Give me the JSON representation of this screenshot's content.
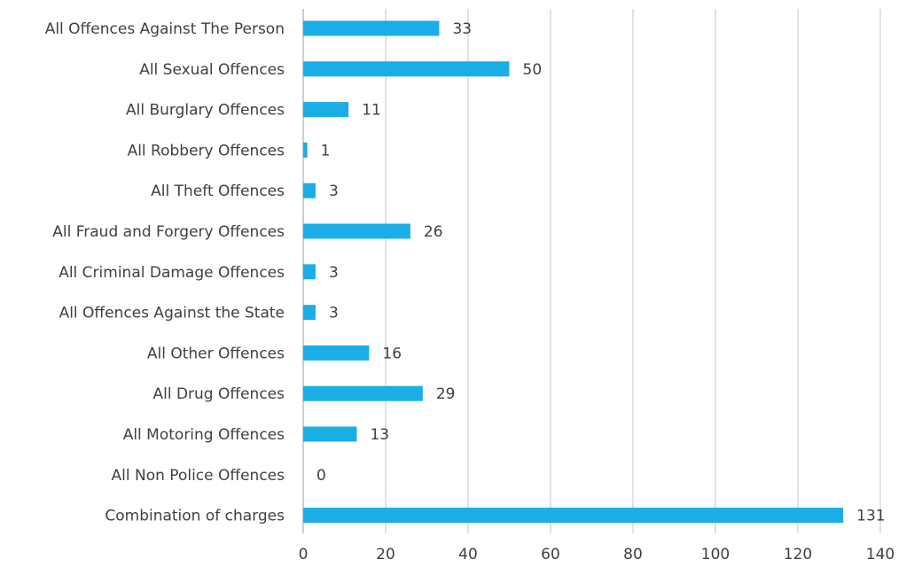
{
  "chart_data": {
    "type": "bar",
    "orientation": "horizontal",
    "categories": [
      "All Offences Against The Person",
      "All Sexual Offences",
      "All Burglary Offences",
      "All Robbery Offences",
      "All Theft Offences",
      "All Fraud and Forgery Offences",
      "All Criminal Damage Offences",
      "All Offences Against the State",
      "All Other Offences",
      "All Drug Offences",
      "All Motoring Offences",
      "All Non Police Offences",
      "Combination of charges"
    ],
    "values": [
      33,
      50,
      11,
      1,
      3,
      26,
      3,
      3,
      16,
      29,
      13,
      0,
      131
    ],
    "xlim": [
      0,
      140
    ],
    "xticks": [
      0,
      20,
      40,
      60,
      80,
      100,
      120,
      140
    ],
    "grid": "vertical",
    "data_labels": true,
    "bar_color": "#1baee6",
    "title": "",
    "xlabel": "",
    "ylabel": ""
  }
}
